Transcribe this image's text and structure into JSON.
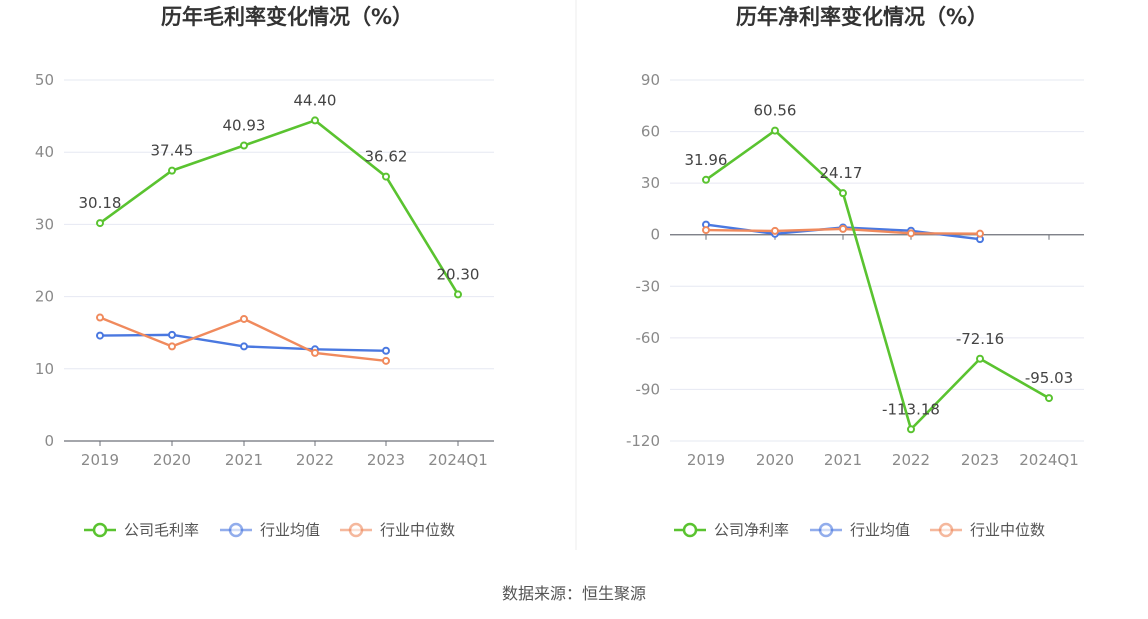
{
  "source_note": "数据来源：恒生聚源",
  "legend_icon": "circle-line-icon",
  "chart_data": [
    {
      "type": "line",
      "title": "历年毛利率变化情况（%）",
      "categories": [
        "2019",
        "2020",
        "2021",
        "2022",
        "2023",
        "2024Q1"
      ],
      "ylim": [
        0,
        50
      ],
      "yticks": [
        0,
        10,
        20,
        30,
        40,
        50
      ],
      "grid": true,
      "legend_position": "bottom",
      "series": [
        {
          "name": "公司毛利率",
          "color": "#5ac330",
          "values": [
            30.18,
            37.45,
            40.93,
            44.4,
            36.62,
            20.3
          ],
          "labels": [
            "30.18",
            "37.45",
            "40.93",
            "44.40",
            "36.62",
            "20.30"
          ]
        },
        {
          "name": "行业均值",
          "color": "#4a78e0",
          "values": [
            14.6,
            14.7,
            13.1,
            12.7,
            12.5,
            null
          ]
        },
        {
          "name": "行业中位数",
          "color": "#f08a5d",
          "values": [
            17.1,
            13.1,
            16.9,
            12.2,
            11.1,
            null
          ]
        }
      ]
    },
    {
      "type": "line",
      "title": "历年净利率变化情况（%）",
      "categories": [
        "2019",
        "2020",
        "2021",
        "2022",
        "2023",
        "2024Q1"
      ],
      "ylim": [
        -120,
        90
      ],
      "yticks": [
        -120,
        -90,
        -60,
        -30,
        0,
        30,
        60,
        90
      ],
      "grid": true,
      "legend_position": "bottom",
      "series": [
        {
          "name": "公司净利率",
          "color": "#5ac330",
          "values": [
            31.96,
            60.56,
            24.17,
            -113.18,
            -72.16,
            -95.03
          ],
          "labels": [
            "31.96",
            "60.56",
            "24.17",
            "-113.18",
            "-72.16",
            "-95.03"
          ]
        },
        {
          "name": "行业均值",
          "color": "#4a78e0",
          "values": [
            5.9,
            0.5,
            4.2,
            2.3,
            -2.6,
            null
          ]
        },
        {
          "name": "行业中位数",
          "color": "#f08a5d",
          "values": [
            2.7,
            2.2,
            3.4,
            0.8,
            0.6,
            null
          ]
        }
      ]
    }
  ]
}
